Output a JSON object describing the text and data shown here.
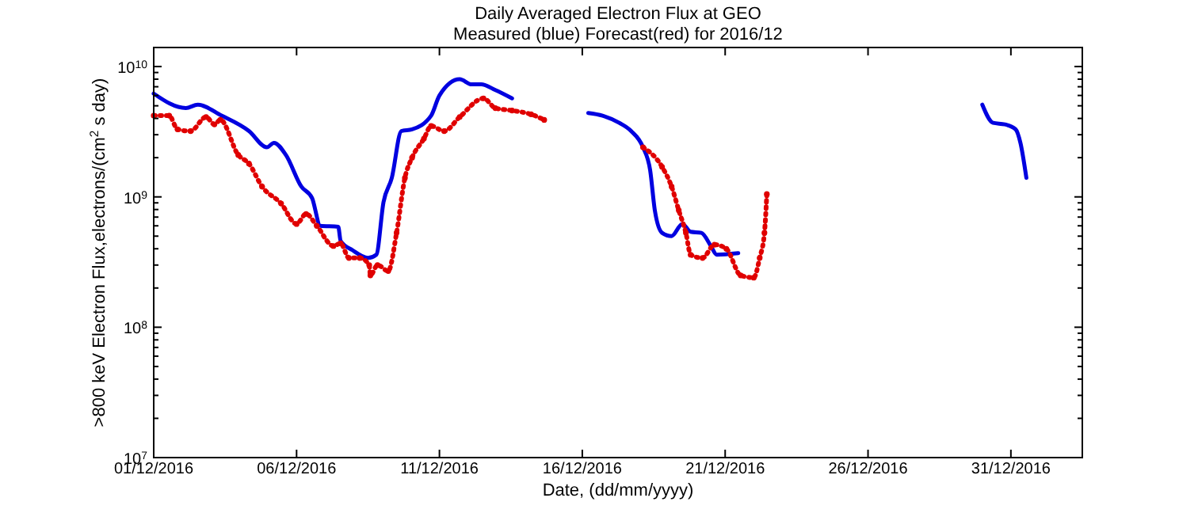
{
  "chart_data": {
    "type": "line",
    "title": "Daily Averaged Electron Flux at GEO",
    "subtitle": "Measured (blue) Forecast(red) for 2016/12",
    "xlabel": "Date, (dd/mm/yyyy)",
    "ylabel": ">800 keV Electron Flux,electrons/(cm$^{2}$ s day)",
    "log": "y",
    "xlim": [
      "2016-12-01T00:00",
      "2017-01-02T12:00"
    ],
    "xticks": [
      {
        "value": "2016-12-01",
        "label": "01/12/2016"
      },
      {
        "value": "2016-12-06",
        "label": "06/12/2016"
      },
      {
        "value": "2016-12-11",
        "label": "11/12/2016"
      },
      {
        "value": "2016-12-16",
        "label": "16/12/2016"
      },
      {
        "value": "2016-12-21",
        "label": "21/12/2016"
      },
      {
        "value": "2016-12-26",
        "label": "26/12/2016"
      },
      {
        "value": "2016-12-31",
        "label": "31/12/2016"
      }
    ],
    "ylim": [
      10000000,
      14000000000
    ],
    "yticks": [
      {
        "value": 10000000,
        "label": "10$^{7}$"
      },
      {
        "value": 20000000,
        "label": null
      },
      {
        "value": 30000000,
        "label": null
      },
      {
        "value": 40000000,
        "label": null
      },
      {
        "value": 50000000,
        "label": null
      },
      {
        "value": 60000000,
        "label": null
      },
      {
        "value": 70000000,
        "label": null
      },
      {
        "value": 80000000,
        "label": null
      },
      {
        "value": 90000000,
        "label": null
      },
      {
        "value": 100000000,
        "label": "10$^{8}$"
      },
      {
        "value": 200000000,
        "label": null
      },
      {
        "value": 300000000,
        "label": null
      },
      {
        "value": 400000000,
        "label": null
      },
      {
        "value": 500000000,
        "label": null
      },
      {
        "value": 600000000,
        "label": null
      },
      {
        "value": 700000000,
        "label": null
      },
      {
        "value": 800000000,
        "label": null
      },
      {
        "value": 900000000,
        "label": null
      },
      {
        "value": 1000000000,
        "label": "10$^{9}$"
      },
      {
        "value": 2000000000,
        "label": null
      },
      {
        "value": 3000000000,
        "label": null
      },
      {
        "value": 4000000000,
        "label": null
      },
      {
        "value": 5000000000,
        "label": null
      },
      {
        "value": 6000000000,
        "label": null
      },
      {
        "value": 7000000000,
        "label": null
      },
      {
        "value": 8000000000,
        "label": null
      },
      {
        "value": 9000000000,
        "label": null
      },
      {
        "value": 10000000000,
        "label": "10$^{10}$"
      }
    ],
    "series": [
      {
        "color": "#0000e0",
        "line_style": "solid",
        "marker": "none",
        "x": [
          "2016-12-01T00:00",
          "2016-12-02T03:00",
          "2016-12-02T13:00",
          "2016-12-03T09:00",
          "2016-12-04T08:00",
          "2016-12-04T23:00",
          "2016-12-05T05:00",
          "2016-12-05T15:00",
          "2016-12-06T04:00",
          "2016-12-06T13:00",
          "2016-12-06T20:00",
          "2016-12-07T11:00",
          "2016-12-07T13:00",
          "2016-12-07T23:00",
          "2016-12-08T12:00",
          "2016-12-08T19:00",
          "2016-12-09T01:00",
          "2016-12-09T08:00",
          "2016-12-09T16:00",
          "2016-12-10T01:00",
          "2016-12-10T17:00",
          "2016-12-11T00:00",
          "2016-12-11T17:00",
          "2016-12-12T03:00",
          "2016-12-12T11:00",
          "2016-12-12T23:00",
          "2016-12-13T13:00",
          "2016-12-15T00:00",
          "2016-12-16T05:00",
          "2016-12-16T17:00",
          "2016-12-17T07:00",
          "2016-12-17T17:00",
          "2016-12-18T03:00",
          "2016-12-18T09:00",
          "2016-12-18T13:00",
          "2016-12-18T19:00",
          "2016-12-19T03:00",
          "2016-12-19T12:00",
          "2016-12-19T19:00",
          "2016-12-20T04:00",
          "2016-12-20T12:00",
          "2016-12-20T17:00",
          "2016-12-21T11:00",
          "2016-12-25T00:00",
          "2016-12-30T00:00",
          "2016-12-30T09:00",
          "2016-12-30T19:00",
          "2016-12-31T04:00",
          "2016-12-31T08:00",
          "2016-12-31T13:00"
        ],
        "values": [
          6200000000,
          4800000000,
          5100000000,
          4200000000,
          3200000000,
          2400000000,
          2600000000,
          2100000000,
          1200000000,
          980000000,
          600000000,
          590000000,
          460000000,
          390000000,
          340000000,
          360000000,
          910000000,
          1400000000,
          3200000000,
          3300000000,
          4200000000,
          6000000000,
          8000000000,
          7300000000,
          7300000000,
          6600000000,
          5700000000,
          null,
          4400000000,
          4200000000,
          3700000000,
          3200000000,
          2400000000,
          1600000000,
          780000000,
          530000000,
          500000000,
          620000000,
          540000000,
          530000000,
          420000000,
          360000000,
          370000000,
          null,
          5100000000,
          3700000000,
          3600000000,
          3300000000,
          2600000000,
          1400000000
        ]
      },
      {
        "color": "#e00000",
        "line_style": "dotted",
        "marker": "circle",
        "x": [
          "2016-12-01T00:00",
          "2016-12-01T13:00",
          "2016-12-01T20:00",
          "2016-12-02T07:00",
          "2016-12-02T20:00",
          "2016-12-03T03:00",
          "2016-12-03T08:00",
          "2016-12-03T23:00",
          "2016-12-04T08:00",
          "2016-12-04T19:00",
          "2016-12-05T11:00",
          "2016-12-06T00:00",
          "2016-12-06T08:00",
          "2016-12-06T17:00",
          "2016-12-07T07:00",
          "2016-12-07T13:00",
          "2016-12-07T20:00",
          "2016-12-08T05:00",
          "2016-12-08T13:00",
          "2016-12-08T14:00",
          "2016-12-08T20:00",
          "2016-12-09T05:00",
          "2016-12-09T12:00",
          "2016-12-09T19:00",
          "2016-12-10T01:00",
          "2016-12-10T11:00",
          "2016-12-10T17:00",
          "2016-12-11T04:00",
          "2016-12-11T17:00",
          "2016-12-12T13:00",
          "2016-12-12T23:00",
          "2016-12-13T13:00",
          "2016-12-14T05:00",
          "2016-12-14T16:00",
          "2016-12-16T00:00",
          "2016-12-18T03:00",
          "2016-12-18T19:00",
          "2016-12-19T03:00",
          "2016-12-19T09:00",
          "2016-12-19T15:00",
          "2016-12-19T19:00",
          "2016-12-20T05:00",
          "2016-12-20T15:00",
          "2016-12-21T01:00",
          "2016-12-21T13:00",
          "2016-12-22T00:00",
          "2016-12-22T05:00",
          "2016-12-22T09:00",
          "2016-12-22T11:00"
        ],
        "values": [
          4200000000,
          4200000000,
          3300000000,
          3200000000,
          4100000000,
          3600000000,
          3900000000,
          2100000000,
          1800000000,
          1200000000,
          890000000,
          620000000,
          740000000,
          600000000,
          420000000,
          440000000,
          340000000,
          340000000,
          300000000,
          250000000,
          300000000,
          270000000,
          530000000,
          1400000000,
          2000000000,
          2800000000,
          3500000000,
          3200000000,
          4100000000,
          5700000000,
          4800000000,
          4600000000,
          4300000000,
          3900000000,
          null,
          2400000000,
          1700000000,
          1200000000,
          790000000,
          530000000,
          360000000,
          340000000,
          430000000,
          400000000,
          250000000,
          240000000,
          340000000,
          530000000,
          1050000000
        ]
      }
    ]
  }
}
